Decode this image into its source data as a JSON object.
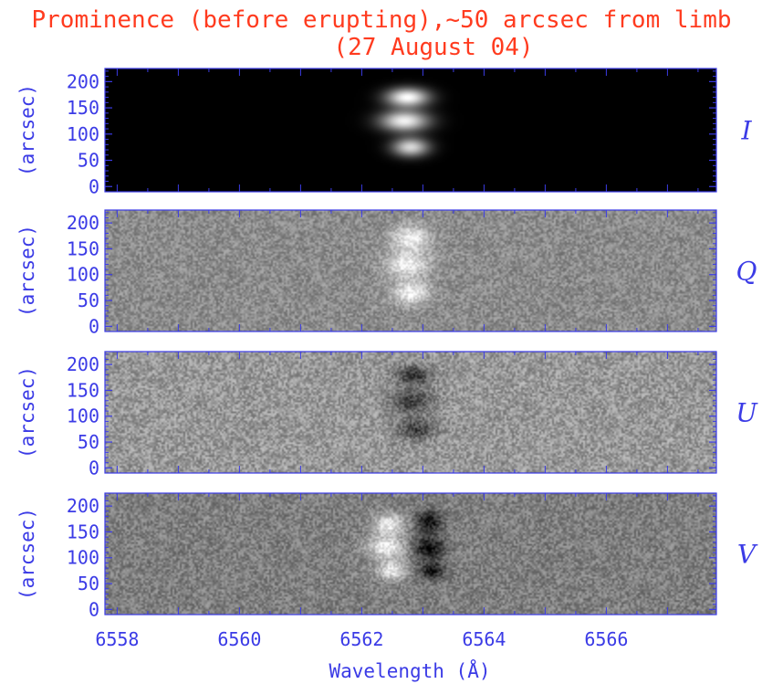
{
  "colors": {
    "title": "#ff3b1f",
    "axes": "#3b3be6"
  },
  "chart_data": {
    "type": "heatmap",
    "title": "Prominence (before erupting),~50 arcsec from limb",
    "subtitle": "(27 August 04)",
    "xlabel": "Wavelength (Å)",
    "xlim": [
      6557.8,
      6567.8
    ],
    "x_ticks": [
      "6558",
      "6560",
      "6562",
      "6564",
      "6566"
    ],
    "x_tick_values": [
      6558,
      6560,
      6562,
      6564,
      6566
    ],
    "colormap": "grayscale",
    "panels": [
      {
        "stokes": "I",
        "ylabel": "(arcsec)",
        "ylim": [
          -10,
          225
        ],
        "y_ticks": [
          "0",
          "50",
          "100",
          "150",
          "200"
        ],
        "y_tick_values": [
          0,
          50,
          100,
          150,
          200
        ],
        "background_level": 0.0,
        "noise": 0.0,
        "features": [
          {
            "wavelength": 6562.75,
            "y": 170,
            "width": 0.35,
            "height": 18,
            "amplitude": 1.0
          },
          {
            "wavelength": 6562.7,
            "y": 125,
            "width": 0.4,
            "height": 20,
            "amplitude": 0.95
          },
          {
            "wavelength": 6562.8,
            "y": 75,
            "width": 0.3,
            "height": 18,
            "amplitude": 0.85
          }
        ]
      },
      {
        "stokes": "Q",
        "ylabel": "(arcsec)",
        "ylim": [
          -10,
          225
        ],
        "y_ticks": [
          "0",
          "50",
          "100",
          "150",
          "200"
        ],
        "y_tick_values": [
          0,
          50,
          100,
          150,
          200
        ],
        "background_level": 0.55,
        "noise": 0.13,
        "features": [
          {
            "wavelength": 6562.8,
            "y": 170,
            "width": 0.3,
            "height": 25,
            "amplitude": 0.4
          },
          {
            "wavelength": 6562.75,
            "y": 120,
            "width": 0.35,
            "height": 25,
            "amplitude": 0.4
          },
          {
            "wavelength": 6562.8,
            "y": 65,
            "width": 0.3,
            "height": 22,
            "amplitude": 0.4
          }
        ]
      },
      {
        "stokes": "U",
        "ylabel": "(arcsec)",
        "ylim": [
          -10,
          225
        ],
        "y_ticks": [
          "0",
          "50",
          "100",
          "150",
          "200"
        ],
        "y_tick_values": [
          0,
          50,
          100,
          150,
          200
        ],
        "background_level": 0.6,
        "noise": 0.16,
        "features": [
          {
            "wavelength": 6562.85,
            "y": 180,
            "width": 0.3,
            "height": 18,
            "amplitude": -0.4
          },
          {
            "wavelength": 6562.8,
            "y": 130,
            "width": 0.35,
            "height": 25,
            "amplitude": -0.35
          },
          {
            "wavelength": 6562.9,
            "y": 75,
            "width": 0.3,
            "height": 20,
            "amplitude": -0.35
          }
        ]
      },
      {
        "stokes": "V",
        "ylabel": "(arcsec)",
        "ylim": [
          -10,
          225
        ],
        "y_ticks": [
          "0",
          "50",
          "100",
          "150",
          "200"
        ],
        "y_tick_values": [
          0,
          50,
          100,
          150,
          200
        ],
        "background_level": 0.5,
        "noise": 0.14,
        "features": [
          {
            "wavelength": 6562.45,
            "y": 165,
            "width": 0.25,
            "height": 20,
            "amplitude": 0.45
          },
          {
            "wavelength": 6562.4,
            "y": 120,
            "width": 0.3,
            "height": 22,
            "amplitude": 0.45
          },
          {
            "wavelength": 6562.5,
            "y": 75,
            "width": 0.25,
            "height": 18,
            "amplitude": 0.4
          },
          {
            "wavelength": 6563.1,
            "y": 170,
            "width": 0.22,
            "height": 20,
            "amplitude": -0.45
          },
          {
            "wavelength": 6563.1,
            "y": 120,
            "width": 0.25,
            "height": 22,
            "amplitude": -0.45
          },
          {
            "wavelength": 6563.15,
            "y": 75,
            "width": 0.22,
            "height": 18,
            "amplitude": -0.4
          }
        ]
      }
    ]
  }
}
